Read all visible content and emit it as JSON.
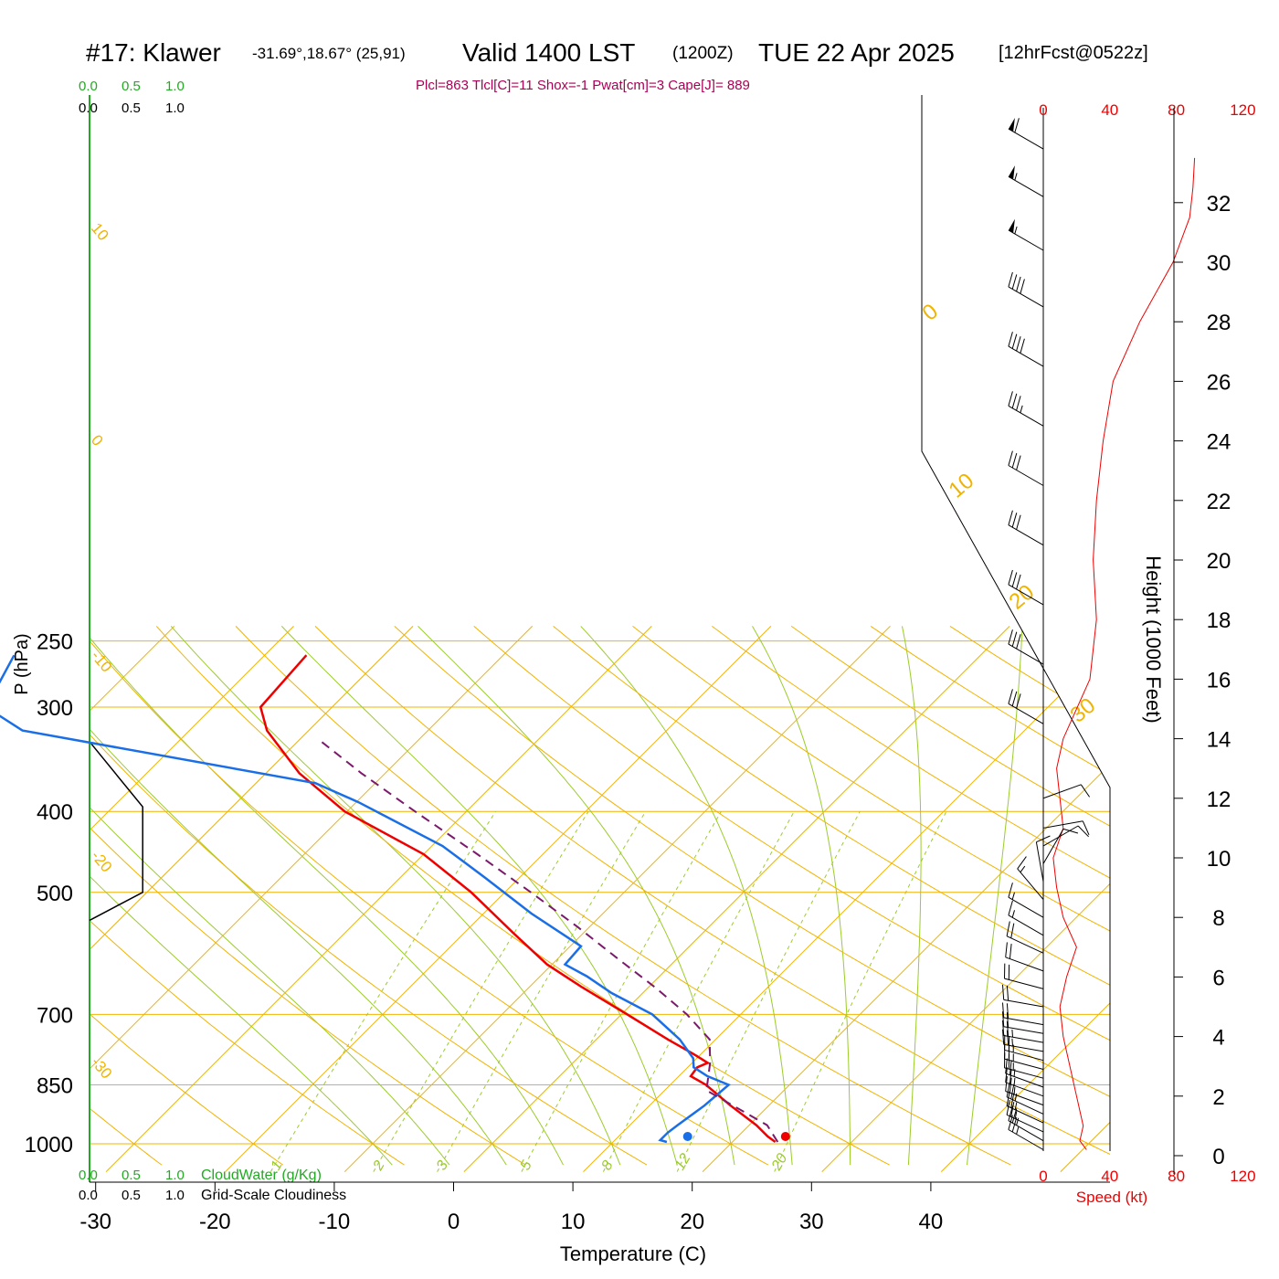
{
  "header": {
    "station": "#17: Klawer",
    "coords": "-31.69°,18.67° (25,91)",
    "valid": "Valid 1400 LST",
    "utc": "(1200Z)",
    "date": "TUE 22 Apr 2025",
    "forecast": "[12hrFcst@0522z]",
    "params": "Plcl=863 Tlcl[C]=11 Shox=-1 Pwat[cm]=3 Cape[J]= 889"
  },
  "cloud_scale": {
    "cloudwater_ticks": [
      "0.0",
      "0.5",
      "1.0"
    ],
    "cloudiness_ticks": [
      "0.0",
      "0.5",
      "1.0"
    ],
    "cloudwater_label": "CloudWater (g/Kg)",
    "cloudiness_label": "Grid-Scale Cloudiness"
  },
  "colors": {
    "temperature": "#ee0000",
    "dewpoint": "#1a6ee6",
    "parcel": "#7a1a6a",
    "isotherm": "#f0b400",
    "dry_adiabat": "#f0b400",
    "moist_adiabat": "#9ccc2a",
    "mixing_ratio": "#9ccc2a",
    "cloudwater": "#22aa22",
    "param_text": "#aa0055",
    "speed": "#ee0000"
  },
  "chart_data": {
    "type": "line",
    "subtype": "skew-T log-P sounding",
    "xlabel": "Temperature (C)",
    "ylabel": "P (hPa)",
    "y2label": "Height (1000 Feet)",
    "x_ticks": [
      -30,
      -20,
      -10,
      0,
      10,
      20,
      30,
      40
    ],
    "p_ticks": [
      250,
      300,
      400,
      500,
      700,
      850,
      1000
    ],
    "height_ticks": [
      0,
      2,
      4,
      6,
      8,
      10,
      12,
      14,
      16,
      18,
      20,
      22,
      24,
      26,
      28,
      30,
      32
    ],
    "isotherm_labels": [
      {
        "t": -30,
        "text": "-30"
      },
      {
        "t": -20,
        "text": "-20"
      },
      {
        "t": -10,
        "text": "-10"
      },
      {
        "t": 0,
        "text": "0"
      },
      {
        "t": 10,
        "text": "10"
      },
      {
        "t": 20,
        "text": "20"
      },
      {
        "t": 30,
        "text": "30"
      }
    ],
    "mixing_ratio_labels": [
      "1",
      "2",
      "3",
      "5",
      "8",
      "12",
      "20"
    ],
    "mixing_ratio_values": [
      1,
      2,
      3,
      5,
      8,
      12,
      20
    ],
    "series": [
      {
        "name": "Temperature",
        "p": [
          995,
          980,
          950,
          900,
          850,
          830,
          810,
          800,
          780,
          750,
          700,
          650,
          610,
          560,
          500,
          450,
          400,
          360,
          320,
          300,
          260
        ],
        "t": [
          23.6,
          22.5,
          20.6,
          16.8,
          13.0,
          11.0,
          10.8,
          11.3,
          9.3,
          6.0,
          0.5,
          -5.5,
          -10.4,
          -15.8,
          -22.8,
          -30.0,
          -40.2,
          -47.2,
          -53.5,
          -56.0,
          -56.5
        ]
      },
      {
        "name": "Dewpoint",
        "p": [
          995,
          990,
          970,
          950,
          900,
          850,
          830,
          810,
          790,
          750,
          700,
          660,
          630,
          610,
          580,
          530,
          480,
          440,
          390,
          370,
          320,
          300,
          260
        ],
        "t": [
          14.5,
          13.8,
          13.8,
          14.0,
          14.6,
          14.9,
          12.4,
          10.5,
          9.7,
          7.0,
          2.6,
          -2.6,
          -6.1,
          -8.9,
          -9.1,
          -16.0,
          -22.9,
          -29.1,
          -39.8,
          -45.0,
          -74.0,
          -79.0,
          -81.0
        ]
      },
      {
        "name": "Parcel",
        "p": [
          995,
          950,
          900,
          863,
          800,
          750,
          700,
          650,
          600,
          550,
          500,
          450,
          400,
          360,
          330
        ],
        "t": [
          23.8,
          21.5,
          17.0,
          13.5,
          11.5,
          9.5,
          5.5,
          0.6,
          -5.0,
          -11.0,
          -17.8,
          -25.5,
          -34.3,
          -42.0,
          -48.0
        ]
      }
    ],
    "surface_t": 24.6,
    "surface_td": 16.4,
    "cloudiness_profile": {
      "p": [
        330,
        395,
        500,
        540
      ],
      "value": [
        0.0,
        0.3,
        0.3,
        0.0
      ]
    },
    "wind_speed": {
      "xlabel": "Speed (kt)",
      "x_ticks": [
        0,
        40,
        80,
        120
      ],
      "height_kft": [
        0.2,
        0.5,
        1,
        2,
        3,
        4,
        5,
        6,
        7,
        8,
        9,
        10,
        11,
        12,
        13,
        14,
        16,
        18,
        20,
        22,
        24,
        26,
        28,
        30,
        31.5,
        32.5,
        33.5
      ],
      "speed_kt": [
        26,
        22,
        24,
        20,
        16,
        12,
        10,
        14,
        20,
        12,
        8,
        6,
        12,
        10,
        8,
        12,
        28,
        32,
        30,
        32,
        36,
        42,
        58,
        78,
        88,
        90,
        91
      ]
    },
    "wind_barbs": {
      "height_kft": [
        0.2,
        0.5,
        0.8,
        1.1,
        1.4,
        1.7,
        2.0,
        2.3,
        2.6,
        2.9,
        3.2,
        3.5,
        3.8,
        4.1,
        4.4,
        5.0,
        5.6,
        6.2,
        6.8,
        7.4,
        8.0,
        8.6,
        9.2,
        9.8,
        10.4,
        11.0,
        12.0,
        14.5,
        16.5,
        18.5,
        20.5,
        22.5,
        24.5,
        26.5,
        28.5,
        30.4,
        32.2,
        33.8
      ],
      "speed_kt": [
        25,
        25,
        25,
        25,
        25,
        25,
        25,
        25,
        25,
        25,
        25,
        25,
        25,
        20,
        20,
        20,
        20,
        20,
        20,
        15,
        15,
        15,
        10,
        10,
        10,
        10,
        10,
        30,
        30,
        30,
        30,
        30,
        35,
        40,
        40,
        55,
        55,
        60
      ],
      "dir_deg": [
        300,
        300,
        295,
        295,
        295,
        290,
        290,
        290,
        285,
        285,
        285,
        280,
        280,
        280,
        280,
        280,
        285,
        290,
        295,
        300,
        300,
        320,
        350,
        30,
        60,
        80,
        70,
        300,
        300,
        300,
        300,
        300,
        300,
        300,
        300,
        300,
        300,
        300
      ]
    }
  }
}
